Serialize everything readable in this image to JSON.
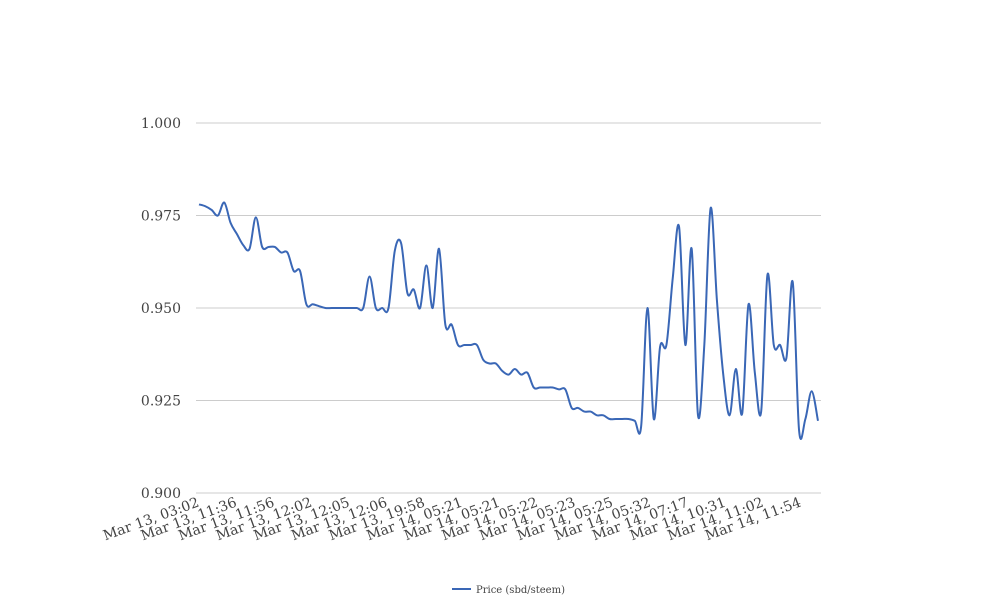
{
  "chart_data": {
    "type": "line",
    "title": "",
    "xlabel": "",
    "ylabel": "",
    "ylim": [
      0.9,
      1.0
    ],
    "yticks": [
      "0.900",
      "0.925",
      "0.950",
      "0.975",
      "1.000"
    ],
    "ytick_values": [
      0.9,
      0.925,
      0.95,
      0.975,
      1.0
    ],
    "xtick_labels": [
      "Mar 13, 03:02",
      "Mar 13, 11:36",
      "Mar 13, 11:56",
      "Mar 13, 12:02",
      "Mar 13, 12:05",
      "Mar 13, 12:06",
      "Mar 13, 19:58",
      "Mar 14, 05:21",
      "Mar 14, 05:21",
      "Mar 14, 05:22",
      "Mar 14, 05:23",
      "Mar 14, 05:25",
      "Mar 14, 05:32",
      "Mar 14, 07:17",
      "Mar 14, 10:31",
      "Mar 14, 11:02",
      "Mar 14, 11:54"
    ],
    "grid": true,
    "legend_position": "bottom",
    "colors": {
      "line": "#3a67b6",
      "grid": "#cccccc",
      "text": "#444444"
    },
    "series": [
      {
        "name": "Price (sbd/steem)",
        "values": [
          0.978,
          0.9775,
          0.9765,
          0.975,
          0.9785,
          0.973,
          0.97,
          0.967,
          0.966,
          0.9745,
          0.9665,
          0.9665,
          0.9665,
          0.965,
          0.965,
          0.96,
          0.96,
          0.951,
          0.951,
          0.9505,
          0.95,
          0.95,
          0.95,
          0.95,
          0.95,
          0.95,
          0.95,
          0.9585,
          0.95,
          0.95,
          0.95,
          0.9655,
          0.9675,
          0.954,
          0.955,
          0.95,
          0.9615,
          0.95,
          0.966,
          0.9455,
          0.9455,
          0.94,
          0.94,
          0.94,
          0.94,
          0.936,
          0.935,
          0.935,
          0.933,
          0.932,
          0.9335,
          0.932,
          0.9325,
          0.9285,
          0.9285,
          0.9285,
          0.9285,
          0.928,
          0.928,
          0.923,
          0.923,
          0.922,
          0.922,
          0.921,
          0.921,
          0.92,
          0.92,
          0.92,
          0.92,
          0.9195,
          0.918,
          0.95,
          0.92,
          0.9395,
          0.94,
          0.958,
          0.972,
          0.94,
          0.966,
          0.921,
          0.94,
          0.977,
          0.952,
          0.932,
          0.921,
          0.9335,
          0.9215,
          0.951,
          0.9325,
          0.922,
          0.959,
          0.94,
          0.94,
          0.9365,
          0.957,
          0.917,
          0.92,
          0.9275,
          0.9195
        ]
      }
    ]
  }
}
